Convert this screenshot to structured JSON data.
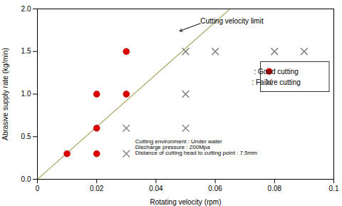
{
  "chart_data": {
    "type": "scatter",
    "xlabel": "Rotating velocity (rpm)",
    "ylabel": "Abrasive supply rate (kg/min)",
    "series": [
      {
        "name": ": Good cutting",
        "type": "scatter",
        "marker": "circle",
        "color": "#dd0000",
        "x": [
          0.01,
          0.02,
          0.02,
          0.02,
          0.03,
          0.03
        ],
        "values": [
          0.3,
          1.0,
          0.6,
          0.3,
          1.5,
          1.0
        ]
      },
      {
        "name": ": Failure cutting",
        "type": "scatter",
        "marker": "x",
        "color": "#888888",
        "x": [
          0.03,
          0.03,
          0.05,
          0.05,
          0.05,
          0.06,
          0.08,
          0.09
        ],
        "values": [
          0.6,
          0.3,
          1.5,
          1.0,
          0.6,
          1.5,
          1.5,
          1.5
        ]
      },
      {
        "type": "line",
        "color": "#aaa866",
        "x": [
          0.0,
          0.065
        ],
        "values": [
          0.0,
          2.0
        ]
      }
    ],
    "xlim": [
      0,
      0.1
    ],
    "ylim": [
      0,
      2.0
    ],
    "xticks": [
      0,
      0.02,
      0.04,
      0.06,
      0.08,
      0.1
    ],
    "yticks": [
      {
        "value": 0,
        "label": "0.0"
      },
      0.5,
      {
        "value": 1.0,
        "label": "1.0"
      },
      1.5,
      {
        "value": 2.0,
        "label": "2.0"
      }
    ],
    "grid": false,
    "legend": "right",
    "annotations": [
      {
        "text": "Cutting velocity limit",
        "x": 0.055,
        "y": 1.83,
        "arrow_x": 0.048,
        "arrow_y": 1.74
      },
      {
        "text": "Cutting environment : Under water\nDischarge pressure : 200Mpa\nDistance of cutting head to cutting point : 7.5mm",
        "x": 0.033,
        "y": 0.47
      }
    ]
  }
}
